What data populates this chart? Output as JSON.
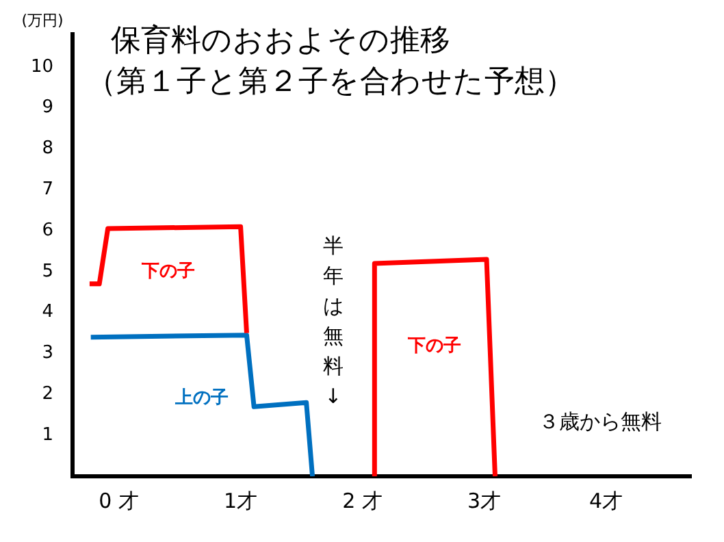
{
  "chart_data": {
    "type": "line",
    "title": "保育料のおおよその推移",
    "subtitle": "（第１子と第２子を合わせた予想）",
    "ylabel": "(万円)",
    "xlim": [
      -0.38,
      4.7
    ],
    "xticks": [
      {
        "value": 0,
        "label": "0 才"
      },
      {
        "value": 1,
        "label": "1才"
      },
      {
        "value": 2,
        "label": "2 才"
      },
      {
        "value": 3,
        "label": "3才"
      },
      {
        "value": 4,
        "label": "4才"
      }
    ],
    "ylim": [
      0,
      10.8
    ],
    "yticks": [
      1,
      2,
      3,
      4,
      5,
      6,
      7,
      8,
      9,
      10
    ],
    "grid": false,
    "legend": false,
    "marker": "none",
    "line_style": "solid",
    "series": [
      {
        "name": "下の子",
        "color": "#ff0000",
        "x": [
          -0.24,
          -0.16,
          -0.09,
          1.0,
          1.05
        ],
        "values": [
          4.7,
          4.7,
          6.05,
          6.1,
          3.5
        ]
      },
      {
        "name": "上の子",
        "color": "#0070c0",
        "x": [
          -0.23,
          1.05,
          1.11,
          1.54,
          1.59
        ],
        "values": [
          3.4,
          3.45,
          1.7,
          1.8,
          0
        ]
      },
      {
        "name": "下の子",
        "color": "#ff0000",
        "x": [
          2.1,
          2.1,
          3.02,
          3.09
        ],
        "values": [
          0,
          5.2,
          5.3,
          0
        ]
      }
    ],
    "annotations": [
      "半年は無料↓",
      "３歳から無料"
    ]
  }
}
